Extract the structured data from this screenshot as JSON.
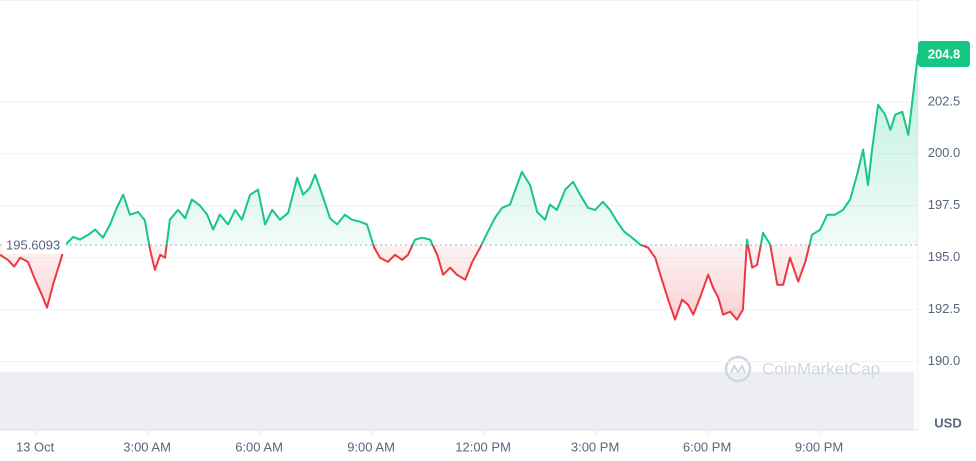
{
  "chart_data": {
    "type": "line",
    "currency": "USD",
    "watermark": "CoinMarketCap",
    "baseline": 195.6093,
    "last_value": 204.8,
    "up_color": "#16c784",
    "down_color": "#ea3943",
    "grid": true,
    "xlim": [
      -0.94,
      23.65
    ],
    "ylim": [
      189.5,
      207.4
    ],
    "xticks": [
      {
        "value": 0,
        "label": "13 Oct"
      },
      {
        "value": 3,
        "label": "3:00 AM"
      },
      {
        "value": 6,
        "label": "6:00 AM"
      },
      {
        "value": 9,
        "label": "9:00 AM"
      },
      {
        "value": 12,
        "label": "12:00 PM"
      },
      {
        "value": 15,
        "label": "3:00 PM"
      },
      {
        "value": 18,
        "label": "6:00 PM"
      },
      {
        "value": 21,
        "label": "9:00 PM"
      }
    ],
    "yticks": [
      {
        "value": 190,
        "label": "190.0"
      },
      192.5,
      {
        "value": 195,
        "label": "195.0"
      },
      197.5,
      {
        "value": 200,
        "label": "200.0"
      },
      202.5
    ],
    "x": [
      -0.94,
      -0.73,
      -0.56,
      -0.4,
      -0.19,
      0.0,
      0.19,
      0.32,
      0.48,
      0.67,
      0.8,
      1.02,
      1.2,
      1.42,
      1.61,
      1.82,
      2.01,
      2.19,
      2.36,
      2.54,
      2.76,
      2.94,
      3.08,
      3.21,
      3.35,
      3.48,
      3.61,
      3.83,
      4.02,
      4.2,
      4.42,
      4.61,
      4.77,
      4.95,
      5.17,
      5.36,
      5.54,
      5.76,
      5.97,
      6.16,
      6.35,
      6.56,
      6.78,
      7.02,
      7.18,
      7.36,
      7.5,
      7.69,
      7.9,
      8.09,
      8.3,
      8.49,
      8.7,
      8.89,
      9.08,
      9.24,
      9.45,
      9.64,
      9.83,
      9.99,
      10.18,
      10.37,
      10.58,
      10.77,
      10.93,
      11.12,
      11.3,
      11.52,
      11.71,
      11.92,
      12.13,
      12.32,
      12.51,
      12.72,
      12.91,
      13.04,
      13.26,
      13.45,
      13.66,
      13.79,
      13.98,
      14.2,
      14.41,
      14.6,
      14.81,
      15.0,
      15.21,
      15.4,
      15.59,
      15.78,
      15.99,
      16.21,
      16.42,
      16.61,
      16.79,
      16.96,
      17.14,
      17.33,
      17.49,
      17.63,
      17.81,
      18.03,
      18.16,
      18.3,
      18.43,
      18.62,
      18.8,
      18.96,
      19.07,
      19.21,
      19.34,
      19.5,
      19.69,
      19.88,
      20.04,
      20.22,
      20.44,
      20.63,
      20.81,
      21.03,
      21.22,
      21.43,
      21.64,
      21.83,
      22.02,
      22.18,
      22.31,
      22.42,
      22.58,
      22.77,
      22.91,
      23.04,
      23.23,
      23.39,
      23.52,
      23.65
    ],
    "values": [
      195.14,
      194.9,
      194.57,
      195.0,
      194.8,
      193.94,
      193.17,
      192.6,
      193.7,
      194.8,
      195.6,
      196.0,
      195.87,
      196.1,
      196.35,
      195.96,
      196.6,
      197.4,
      198.03,
      197.07,
      197.2,
      196.8,
      195.38,
      194.42,
      195.14,
      195.0,
      196.83,
      197.3,
      196.9,
      197.8,
      197.5,
      197.07,
      196.35,
      197.07,
      196.6,
      197.3,
      196.83,
      198.03,
      198.27,
      196.6,
      197.3,
      196.83,
      197.16,
      198.85,
      198.03,
      198.37,
      199.0,
      198.03,
      196.9,
      196.6,
      197.07,
      196.83,
      196.73,
      196.6,
      195.5,
      195.0,
      194.8,
      195.14,
      194.9,
      195.14,
      195.87,
      195.96,
      195.87,
      195.14,
      194.18,
      194.52,
      194.18,
      193.94,
      194.8,
      195.48,
      196.25,
      196.92,
      197.4,
      197.55,
      198.5,
      199.13,
      198.5,
      197.2,
      196.83,
      197.55,
      197.3,
      198.27,
      198.65,
      198.03,
      197.4,
      197.3,
      197.69,
      197.3,
      196.73,
      196.25,
      195.96,
      195.63,
      195.48,
      195.0,
      193.94,
      192.98,
      192.02,
      192.98,
      192.74,
      192.26,
      193.08,
      194.18,
      193.56,
      193.08,
      192.26,
      192.4,
      192.02,
      192.5,
      195.87,
      194.52,
      194.66,
      196.2,
      195.63,
      193.7,
      193.7,
      195.0,
      193.85,
      194.8,
      196.1,
      196.35,
      197.07,
      197.07,
      197.3,
      197.8,
      199.0,
      200.2,
      198.5,
      200.2,
      202.36,
      201.88,
      201.15,
      201.88,
      202.02,
      200.91,
      202.84,
      204.8
    ]
  }
}
